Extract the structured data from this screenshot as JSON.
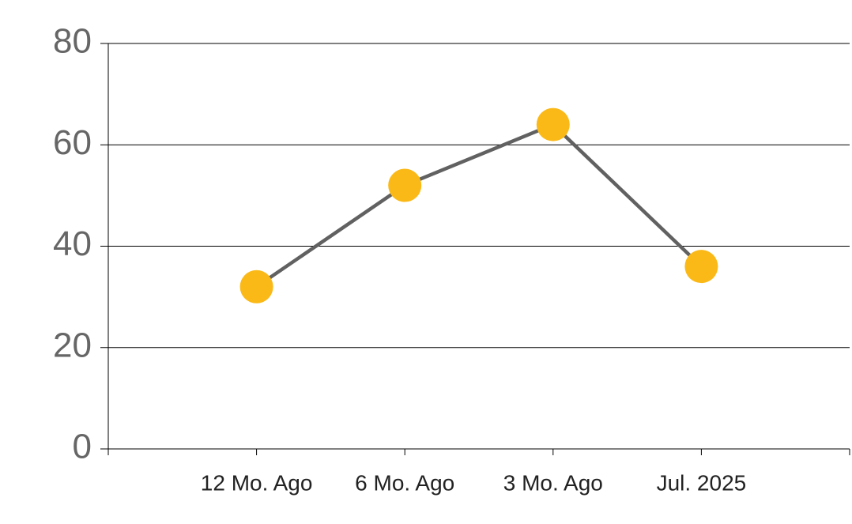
{
  "chart_data": {
    "type": "line",
    "categories": [
      "12 Mo. Ago",
      "6 Mo. Ago",
      "3 Mo. Ago",
      "Jul. 2025"
    ],
    "series": [
      {
        "name": "Value",
        "color": "#616161",
        "marker_color": "#fbb917",
        "values": [
          32,
          52,
          64,
          36
        ]
      }
    ],
    "ylim": [
      0,
      80
    ],
    "yticks": [
      0,
      20,
      40,
      60,
      80
    ],
    "grid": true
  }
}
